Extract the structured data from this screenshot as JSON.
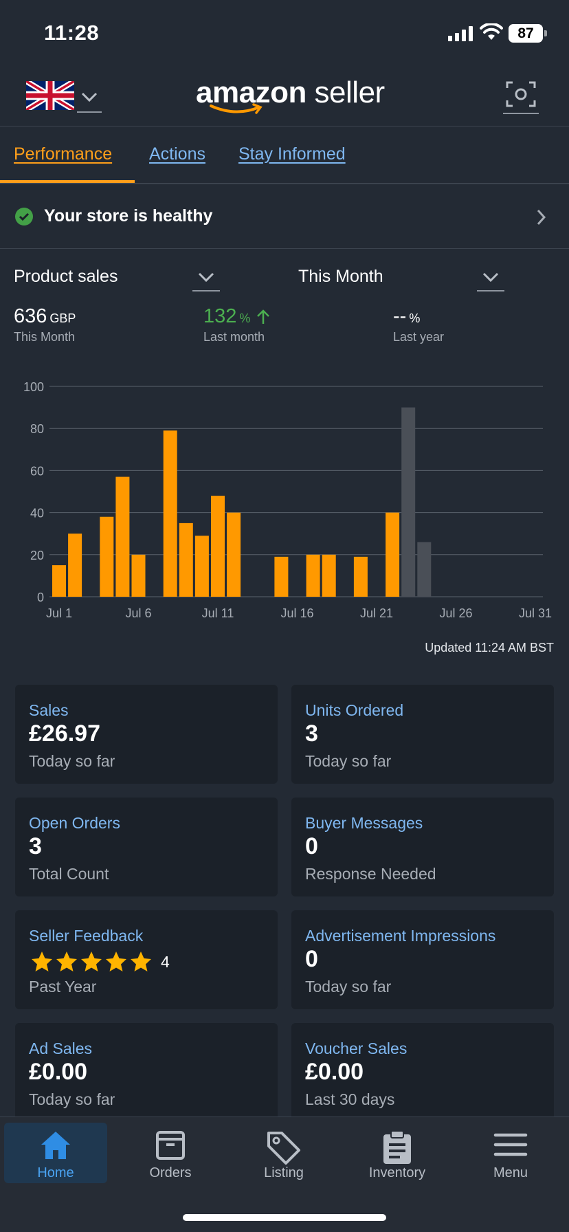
{
  "status_bar": {
    "time": "11:28",
    "battery": "87"
  },
  "header": {
    "logo_bold": "amazon",
    "logo_light": " seller"
  },
  "tabs": [
    {
      "label": "Performance",
      "active": true
    },
    {
      "label": "Actions",
      "active": false
    },
    {
      "label": "Stay Informed",
      "active": false
    }
  ],
  "health": {
    "text": "Your store is healthy"
  },
  "selectors": {
    "metric": "Product sales",
    "period": "This Month"
  },
  "metrics": {
    "current": {
      "value": "636",
      "unit": "GBP",
      "label": "This Month"
    },
    "last_month": {
      "value": "132",
      "unit": "%",
      "label": "Last month",
      "color": "#4caf50"
    },
    "last_year": {
      "value": "--",
      "unit": "%",
      "label": "Last year"
    }
  },
  "chart_data": {
    "type": "bar",
    "y_ticks": [
      "100",
      "80",
      "60",
      "40",
      "20",
      "0"
    ],
    "ylim": [
      0,
      100
    ],
    "x_ticks": [
      {
        "day": 1,
        "label": "Jul 1"
      },
      {
        "day": 6,
        "label": "Jul 6"
      },
      {
        "day": 11,
        "label": "Jul 11"
      },
      {
        "day": 16,
        "label": "Jul 16"
      },
      {
        "day": 21,
        "label": "Jul 21"
      },
      {
        "day": 26,
        "label": "Jul 26"
      },
      {
        "day": 31,
        "label": "Jul 31"
      }
    ],
    "xlim": [
      1,
      31
    ],
    "bars": [
      {
        "day": 1,
        "value": 15,
        "color": "#ff9900"
      },
      {
        "day": 2,
        "value": 30,
        "color": "#ff9900"
      },
      {
        "day": 4,
        "value": 38,
        "color": "#ff9900"
      },
      {
        "day": 5,
        "value": 57,
        "color": "#ff9900"
      },
      {
        "day": 6,
        "value": 20,
        "color": "#ff9900"
      },
      {
        "day": 8,
        "value": 79,
        "color": "#ff9900"
      },
      {
        "day": 9,
        "value": 35,
        "color": "#ff9900"
      },
      {
        "day": 10,
        "value": 29,
        "color": "#ff9900"
      },
      {
        "day": 11,
        "value": 48,
        "color": "#ff9900"
      },
      {
        "day": 12,
        "value": 40,
        "color": "#ff9900"
      },
      {
        "day": 15,
        "value": 19,
        "color": "#ff9900"
      },
      {
        "day": 17,
        "value": 20,
        "color": "#ff9900"
      },
      {
        "day": 18,
        "value": 20,
        "color": "#ff9900"
      },
      {
        "day": 20,
        "value": 19,
        "color": "#ff9900"
      },
      {
        "day": 22,
        "value": 40,
        "color": "#ff9900"
      },
      {
        "day": 23,
        "value": 90,
        "color": "#4a4f57"
      },
      {
        "day": 24,
        "value": 26,
        "color": "#4a4f57"
      }
    ],
    "grid": true
  },
  "updated": "Updated 11:24 AM BST",
  "cards": [
    {
      "title": "Sales",
      "value": "£26.97",
      "sub": "Today so far"
    },
    {
      "title": "Units Ordered",
      "value": "3",
      "sub": "Today so far"
    },
    {
      "title": "Open Orders",
      "value": "3",
      "sub": "Total Count"
    },
    {
      "title": "Buyer Messages",
      "value": "0",
      "sub": "Response Needed"
    },
    {
      "title": "Seller Feedback",
      "value": "",
      "rating": 5,
      "rating_count": "4",
      "sub": "Past Year"
    },
    {
      "title": "Advertisement Impressions",
      "value": "0",
      "sub": "Today so far"
    },
    {
      "title": "Ad Sales",
      "value": "£0.00",
      "sub": "Today so far"
    },
    {
      "title": "Voucher Sales",
      "value": "£0.00",
      "sub": "Last 30 days"
    }
  ],
  "nav": [
    {
      "label": "Home",
      "icon": "home-icon",
      "active": true
    },
    {
      "label": "Orders",
      "icon": "orders-box-icon",
      "active": false
    },
    {
      "label": "Listing",
      "icon": "tag-icon",
      "active": false
    },
    {
      "label": "Inventory",
      "icon": "clipboard-icon",
      "active": false
    },
    {
      "label": "Menu",
      "icon": "hamburger-menu-icon",
      "active": false
    }
  ],
  "colors": {
    "accent": "#ff9f1a",
    "link": "#7fb7f0",
    "positive": "#4caf50",
    "star": "#ffb400"
  }
}
